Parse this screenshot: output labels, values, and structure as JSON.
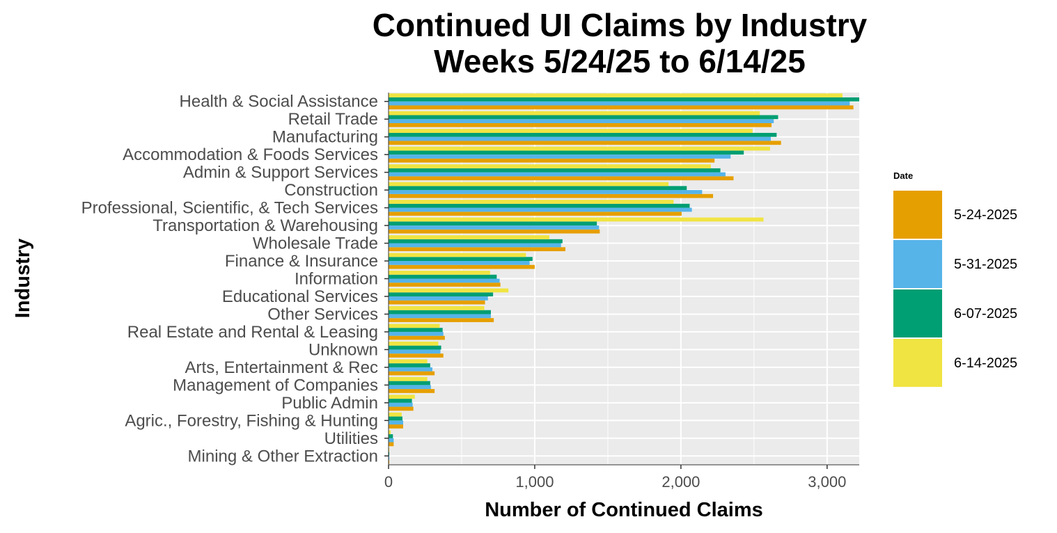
{
  "chart_data": {
    "type": "bar",
    "orientation": "horizontal",
    "title": [
      "Continued UI Claims by Industry",
      "Weeks 5/24/25 to 6/14/25"
    ],
    "xlabel": "Number of Continued Claims",
    "ylabel": "Industry",
    "xlim": [
      0,
      3220
    ],
    "xticks": [
      0,
      1000,
      2000,
      3000
    ],
    "xtick_labels": [
      "0",
      "1,000",
      "2,000",
      "3,000"
    ],
    "grid": true,
    "legend": {
      "title": "Date",
      "position": "right"
    },
    "categories": [
      "Health & Social Assistance",
      "Retail Trade",
      "Manufacturing",
      "Accommodation & Foods Services",
      "Admin & Support Services",
      "Construction",
      "Professional, Scientific, & Tech Services",
      "Transportation & Warehousing",
      "Wholesale Trade",
      "Finance & Insurance",
      "Information",
      "Educational Services",
      "Other Services",
      "Real Estate and Rental & Leasing",
      "Unknown",
      "Arts, Entertainment & Rec",
      "Management of Companies",
      "Public Admin",
      "Agric., Forestry, Fishing & Hunting",
      "Utilities",
      "Mining & Other Extraction"
    ],
    "series": [
      {
        "name": "5-24-2025",
        "color": "#E69F00",
        "values": [
          3180,
          2620,
          2685,
          2230,
          2360,
          2220,
          2005,
          1445,
          1210,
          1000,
          765,
          660,
          720,
          385,
          375,
          315,
          315,
          170,
          100,
          35,
          5
        ]
      },
      {
        "name": "5-31-2025",
        "color": "#56B4E9",
        "values": [
          3155,
          2635,
          2615,
          2340,
          2305,
          2145,
          2075,
          1440,
          1180,
          965,
          760,
          680,
          700,
          375,
          355,
          300,
          290,
          165,
          100,
          35,
          5
        ]
      },
      {
        "name": "6-07-2025",
        "color": "#009E73",
        "values": [
          3220,
          2665,
          2655,
          2430,
          2270,
          2040,
          2060,
          1425,
          1190,
          985,
          740,
          715,
          700,
          370,
          360,
          285,
          285,
          160,
          95,
          30,
          5
        ]
      },
      {
        "name": "6-14-2025",
        "color": "#F0E442",
        "values": [
          3105,
          2540,
          2490,
          2610,
          2205,
          1915,
          1950,
          2565,
          1100,
          940,
          695,
          820,
          655,
          350,
          340,
          265,
          265,
          180,
          90,
          15,
          5
        ]
      }
    ]
  }
}
